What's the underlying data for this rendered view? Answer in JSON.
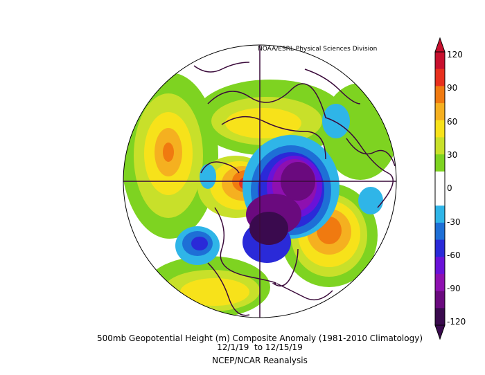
{
  "credit": "NOAA/ESRL Physical Sciences Division",
  "caption": {
    "line1": "500mb Geopotential Height (m) Composite Anomaly (1981-2010 Climatology)",
    "line2": "12/1/19  to 12/15/19",
    "line3": "NCEP/NCAR Reanalysis"
  },
  "colorbar": {
    "labels": [
      "120",
      "90",
      "60",
      "30",
      "0",
      "-30",
      "-60",
      "-90",
      "-120"
    ],
    "colors": [
      "#c8102e",
      "#e8301e",
      "#f07a10",
      "#f5b020",
      "#f7e21a",
      "#c8e02a",
      "#7ed321",
      "#ffffff",
      "#ffffff",
      "#2fb5e8",
      "#1e6fd6",
      "#2a2ad8",
      "#6a12d8",
      "#8e10b0",
      "#6a0a7e",
      "#3a0a4e"
    ]
  },
  "map": {
    "projection": "polar stereographic (north pole)",
    "variable": "500mb geopotential height anomaly"
  }
}
